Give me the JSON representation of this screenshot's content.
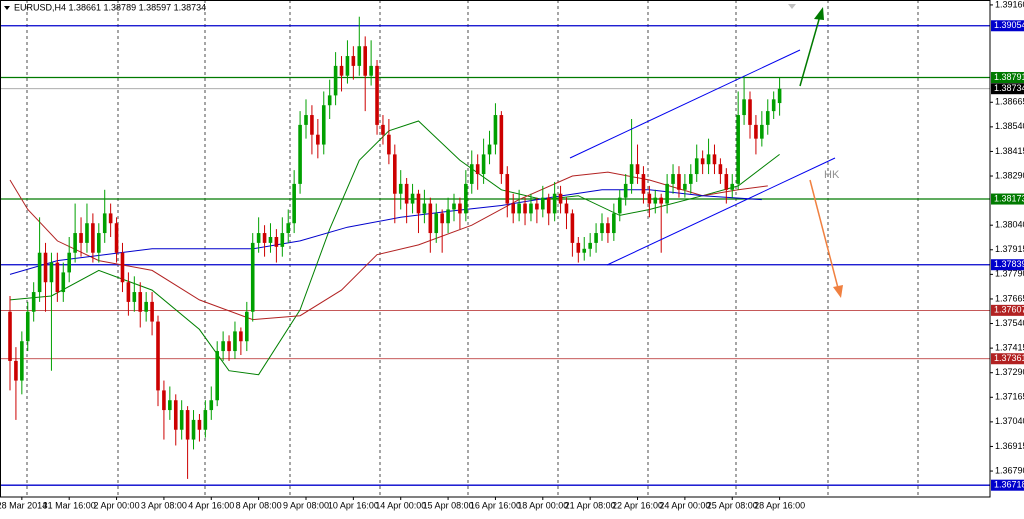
{
  "chart_data": {
    "type": "candlestick",
    "title": "EURUSD,H4  1.38661 1.38789 1.38597 1.38734",
    "annotation": "HK",
    "up_color": "#00a000",
    "down_color": "#cc0000",
    "ylim": [
      1.36658,
      1.39185
    ],
    "yticks": [
      {
        "value": 1.3916,
        "label": "1.39160"
      },
      1.38665,
      {
        "value": 1.3854,
        "label": "1.38540"
      },
      1.38415,
      {
        "value": 1.3829,
        "label": "1.38290"
      },
      {
        "value": 1.3804,
        "label": "1.38040"
      },
      1.37915,
      {
        "value": 1.3779,
        "label": "1.37790"
      },
      1.37665,
      {
        "value": 1.3754,
        "label": "1.37540"
      },
      1.37415,
      {
        "value": 1.3729,
        "label": "1.37290"
      },
      1.37165,
      {
        "value": 1.3704,
        "label": "1.37040"
      },
      1.36915,
      {
        "value": 1.3679,
        "label": "1.36790"
      }
    ],
    "levels": [
      {
        "value": 1.39054,
        "color": "#0000cc"
      },
      {
        "value": 1.38791,
        "color": "#007a00"
      },
      {
        "value": 1.38173,
        "color": "#007a00"
      },
      {
        "value": 1.37839,
        "color": "#0000cc"
      },
      {
        "value": 1.37607,
        "color": "#b22222"
      },
      {
        "value": 1.37361,
        "color": "#b22222"
      },
      {
        "value": 1.36718,
        "color": "#0000cc"
      }
    ],
    "current_price": {
      "value": 1.38734,
      "color": "#000000"
    },
    "categories": [
      null,
      null,
      "28 Mar 2014",
      null,
      null,
      null,
      null,
      null,
      null,
      null,
      "31 Mar 16:00",
      null,
      null,
      null,
      null,
      null,
      null,
      null,
      "2 Apr 00:00",
      null,
      null,
      null,
      null,
      null,
      null,
      null,
      "3 Apr 08:00",
      null,
      null,
      null,
      null,
      null,
      null,
      null,
      "4 Apr 16:00",
      null,
      null,
      null,
      null,
      null,
      null,
      null,
      "8 Apr 08:00",
      null,
      null,
      null,
      null,
      null,
      null,
      null,
      "9 Apr 08:00",
      null,
      null,
      null,
      null,
      null,
      null,
      null,
      "10 Apr 16:00",
      null,
      null,
      null,
      null,
      null,
      null,
      null,
      "14 Apr 00:00",
      null,
      null,
      null,
      null,
      null,
      null,
      null,
      "15 Apr 08:00",
      null,
      null,
      null,
      null,
      null,
      null,
      null,
      "16 Apr 16:00",
      null,
      null,
      null,
      null,
      null,
      null,
      null,
      "18 Apr 00:00",
      null,
      null,
      null,
      null,
      null,
      null,
      null,
      "21 Apr 08:00",
      null,
      null,
      null,
      null,
      null,
      null,
      null,
      "22 Apr 16:00",
      null,
      null,
      null,
      null,
      null,
      null,
      null,
      "24 Apr 00:00",
      null,
      null,
      null,
      null,
      null,
      null,
      null,
      "25 Apr 08:00",
      null,
      null,
      null,
      null,
      null,
      null,
      null,
      "28 Apr 16:00"
    ],
    "ohlc": [
      [
        1.376,
        1.3768,
        1.372,
        1.3735
      ],
      [
        1.3735,
        1.3742,
        1.3705,
        1.3725
      ],
      [
        1.3725,
        1.375,
        1.3718,
        1.3745
      ],
      [
        1.3745,
        1.3765,
        1.374,
        1.376
      ],
      [
        1.376,
        1.3775,
        1.3755,
        1.377
      ],
      [
        1.377,
        1.3808,
        1.3765,
        1.379
      ],
      [
        1.379,
        1.3795,
        1.376,
        1.3775
      ],
      [
        1.3775,
        1.379,
        1.373,
        1.3785
      ],
      [
        1.3785,
        1.379,
        1.3765,
        1.377
      ],
      [
        1.377,
        1.3785,
        1.3765,
        1.378
      ],
      [
        1.378,
        1.3798,
        1.3775,
        1.379
      ],
      [
        1.379,
        1.3815,
        1.3785,
        1.38
      ],
      [
        1.38,
        1.3808,
        1.3788,
        1.3795
      ],
      [
        1.3795,
        1.3815,
        1.379,
        1.3805
      ],
      [
        1.3805,
        1.381,
        1.3785,
        1.379
      ],
      [
        1.379,
        1.3805,
        1.3785,
        1.38
      ],
      [
        1.38,
        1.3822,
        1.3795,
        1.381
      ],
      [
        1.381,
        1.3815,
        1.3798,
        1.3805
      ],
      [
        1.3805,
        1.3808,
        1.3785,
        1.379
      ],
      [
        1.379,
        1.3795,
        1.377,
        1.3775
      ],
      [
        1.3775,
        1.378,
        1.3758,
        1.3765
      ],
      [
        1.3765,
        1.3778,
        1.376,
        1.377
      ],
      [
        1.377,
        1.3775,
        1.3752,
        1.376
      ],
      [
        1.376,
        1.377,
        1.3755,
        1.3765
      ],
      [
        1.3765,
        1.377,
        1.3748,
        1.3755
      ],
      [
        1.3755,
        1.3758,
        1.3712,
        1.372
      ],
      [
        1.372,
        1.3725,
        1.3695,
        1.371
      ],
      [
        1.371,
        1.3722,
        1.3705,
        1.3715
      ],
      [
        1.3715,
        1.3718,
        1.3692,
        1.37
      ],
      [
        1.37,
        1.3715,
        1.3695,
        1.371
      ],
      [
        1.371,
        1.3712,
        1.3675,
        1.3695
      ],
      [
        1.3695,
        1.371,
        1.369,
        1.3705
      ],
      [
        1.3705,
        1.3708,
        1.3694,
        1.37
      ],
      [
        1.37,
        1.3715,
        1.3696,
        1.371
      ],
      [
        1.371,
        1.3722,
        1.3705,
        1.3715
      ],
      [
        1.3715,
        1.3745,
        1.3712,
        1.374
      ],
      [
        1.374,
        1.375,
        1.3735,
        1.3745
      ],
      [
        1.3745,
        1.3748,
        1.3735,
        1.374
      ],
      [
        1.374,
        1.3755,
        1.3736,
        1.375
      ],
      [
        1.375,
        1.3752,
        1.3738,
        1.3745
      ],
      [
        1.3745,
        1.3765,
        1.374,
        1.376
      ],
      [
        1.376,
        1.38,
        1.3755,
        1.3795
      ],
      [
        1.3795,
        1.3808,
        1.379,
        1.38
      ],
      [
        1.38,
        1.3804,
        1.3788,
        1.3795
      ],
      [
        1.3795,
        1.3805,
        1.379,
        1.3798
      ],
      [
        1.3798,
        1.3802,
        1.3785,
        1.3793
      ],
      [
        1.3793,
        1.3808,
        1.3788,
        1.38
      ],
      [
        1.38,
        1.3812,
        1.3795,
        1.3805
      ],
      [
        1.3805,
        1.3832,
        1.38,
        1.3825
      ],
      [
        1.3825,
        1.3862,
        1.382,
        1.3855
      ],
      [
        1.3855,
        1.3868,
        1.3848,
        1.386
      ],
      [
        1.386,
        1.3865,
        1.384,
        1.385
      ],
      [
        1.385,
        1.3858,
        1.3838,
        1.3845
      ],
      [
        1.3845,
        1.3872,
        1.384,
        1.3865
      ],
      [
        1.3865,
        1.3878,
        1.3858,
        1.387
      ],
      [
        1.387,
        1.3892,
        1.3865,
        1.3885
      ],
      [
        1.3885,
        1.389,
        1.3872,
        1.388
      ],
      [
        1.388,
        1.3898,
        1.3876,
        1.389
      ],
      [
        1.389,
        1.3895,
        1.3878,
        1.3885
      ],
      [
        1.3885,
        1.391,
        1.388,
        1.3895
      ],
      [
        1.3895,
        1.39,
        1.3862,
        1.388
      ],
      [
        1.388,
        1.3898,
        1.3875,
        1.3885
      ],
      [
        1.3885,
        1.3888,
        1.385,
        1.3855
      ],
      [
        1.3855,
        1.386,
        1.3845,
        1.385
      ],
      [
        1.385,
        1.3858,
        1.3835,
        1.384
      ],
      [
        1.384,
        1.3845,
        1.3805,
        1.382
      ],
      [
        1.382,
        1.3832,
        1.3812,
        1.3825
      ],
      [
        1.3825,
        1.3828,
        1.3805,
        1.3815
      ],
      [
        1.3815,
        1.3825,
        1.381,
        1.382
      ],
      [
        1.382,
        1.3822,
        1.38,
        1.381
      ],
      [
        1.381,
        1.3822,
        1.3805,
        1.3815
      ],
      [
        1.3815,
        1.3818,
        1.379,
        1.38
      ],
      [
        1.38,
        1.3815,
        1.3795,
        1.381
      ],
      [
        1.381,
        1.3812,
        1.379,
        1.3805
      ],
      [
        1.3805,
        1.3818,
        1.38,
        1.3812
      ],
      [
        1.3812,
        1.382,
        1.3806,
        1.3815
      ],
      [
        1.3815,
        1.3818,
        1.3802,
        1.381
      ],
      [
        1.381,
        1.3832,
        1.3806,
        1.3825
      ],
      [
        1.3825,
        1.3842,
        1.382,
        1.3835
      ],
      [
        1.3835,
        1.384,
        1.3822,
        1.383
      ],
      [
        1.383,
        1.3848,
        1.3825,
        1.384
      ],
      [
        1.384,
        1.3852,
        1.3835,
        1.3845
      ],
      [
        1.3845,
        1.3866,
        1.384,
        1.386
      ],
      [
        1.386,
        1.3862,
        1.3825,
        1.383
      ],
      [
        1.383,
        1.3834,
        1.3808,
        1.3815
      ],
      [
        1.3815,
        1.382,
        1.3805,
        1.381
      ],
      [
        1.381,
        1.3822,
        1.3806,
        1.3815
      ],
      [
        1.3815,
        1.3818,
        1.3804,
        1.381
      ],
      [
        1.381,
        1.382,
        1.3806,
        1.3815
      ],
      [
        1.3815,
        1.3818,
        1.3805,
        1.3812
      ],
      [
        1.3812,
        1.3824,
        1.3808,
        1.3818
      ],
      [
        1.3818,
        1.382,
        1.3804,
        1.381
      ],
      [
        1.381,
        1.3826,
        1.3806,
        1.382
      ],
      [
        1.382,
        1.3824,
        1.381,
        1.3815
      ],
      [
        1.3815,
        1.3818,
        1.3802,
        1.381
      ],
      [
        1.381,
        1.3812,
        1.3788,
        1.3795
      ],
      [
        1.3795,
        1.3798,
        1.3785,
        1.379
      ],
      [
        1.379,
        1.3798,
        1.3786,
        1.3792
      ],
      [
        1.3792,
        1.38,
        1.3788,
        1.3795
      ],
      [
        1.3795,
        1.3805,
        1.379,
        1.38
      ],
      [
        1.38,
        1.381,
        1.3796,
        1.3805
      ],
      [
        1.3805,
        1.3808,
        1.3795,
        1.38
      ],
      [
        1.38,
        1.3815,
        1.3796,
        1.381
      ],
      [
        1.381,
        1.3822,
        1.3806,
        1.3818
      ],
      [
        1.3818,
        1.383,
        1.3814,
        1.3825
      ],
      [
        1.3825,
        1.3858,
        1.382,
        1.3835
      ],
      [
        1.3835,
        1.3845,
        1.3825,
        1.383
      ],
      [
        1.383,
        1.3834,
        1.3815,
        1.382
      ],
      [
        1.382,
        1.3824,
        1.3808,
        1.3815
      ],
      [
        1.3815,
        1.3822,
        1.381,
        1.3818
      ],
      [
        1.3818,
        1.382,
        1.379,
        1.3815
      ],
      [
        1.3815,
        1.383,
        1.381,
        1.3825
      ],
      [
        1.3825,
        1.3835,
        1.382,
        1.383
      ],
      [
        1.383,
        1.3834,
        1.3818,
        1.3822
      ],
      [
        1.3822,
        1.383,
        1.3818,
        1.3825
      ],
      [
        1.3825,
        1.3835,
        1.382,
        1.383
      ],
      [
        1.383,
        1.3845,
        1.3826,
        1.3838
      ],
      [
        1.3838,
        1.3842,
        1.383,
        1.3835
      ],
      [
        1.3835,
        1.3848,
        1.383,
        1.384
      ],
      [
        1.384,
        1.3845,
        1.383,
        1.3835
      ],
      [
        1.3835,
        1.3838,
        1.3825,
        1.383
      ],
      [
        1.383,
        1.3833,
        1.3815,
        1.3822
      ],
      [
        1.3822,
        1.383,
        1.3818,
        1.3825
      ],
      [
        1.3825,
        1.3872,
        1.3822,
        1.386
      ],
      [
        1.386,
        1.388,
        1.3855,
        1.3868
      ],
      [
        1.3868,
        1.3872,
        1.3848,
        1.3855
      ],
      [
        1.3855,
        1.386,
        1.384,
        1.3848
      ],
      [
        1.3848,
        1.3862,
        1.3844,
        1.3855
      ],
      [
        1.3855,
        1.3868,
        1.385,
        1.3862
      ],
      [
        1.3862,
        1.3872,
        1.3858,
        1.3868
      ],
      [
        1.38661,
        1.38789,
        1.38597,
        1.38734
      ]
    ],
    "series": [
      {
        "color": "#008000",
        "x": [
          0,
          7,
          15,
          24,
          32,
          37,
          42,
          49,
          54,
          59,
          64,
          69,
          76,
          83,
          90,
          96,
          103,
          108,
          117,
          123,
          130
        ],
        "values": [
          1.3766,
          1.3768,
          1.3781,
          1.3771,
          1.3751,
          1.373,
          1.3728,
          1.3761,
          1.3802,
          1.3837,
          1.3852,
          1.3857,
          1.3837,
          1.3822,
          1.3817,
          1.3819,
          1.3809,
          1.3812,
          1.3819,
          1.3824,
          1.384
        ]
      },
      {
        "color": "#b22222",
        "x": [
          0,
          3,
          8,
          15,
          24,
          32,
          41,
          49,
          56,
          62,
          69,
          78,
          86,
          95,
          101,
          108,
          117,
          123,
          128
        ],
        "values": [
          1.3827,
          1.3812,
          1.3796,
          1.3786,
          1.3781,
          1.3766,
          1.3756,
          1.3758,
          1.3771,
          1.3789,
          1.3794,
          1.3804,
          1.3817,
          1.3829,
          1.3831,
          1.3827,
          1.3819,
          1.3822,
          1.3824
        ]
      },
      {
        "color": "#0000cc",
        "x": [
          0,
          8,
          24,
          41,
          49,
          57,
          66,
          74,
          83,
          91,
          100,
          108,
          117,
          127
        ],
        "values": [
          1.3779,
          1.3786,
          1.3792,
          1.3792,
          1.3796,
          1.3803,
          1.3808,
          1.3811,
          1.3814,
          1.3818,
          1.3822,
          1.3822,
          1.3819,
          1.3817
        ]
      }
    ]
  }
}
